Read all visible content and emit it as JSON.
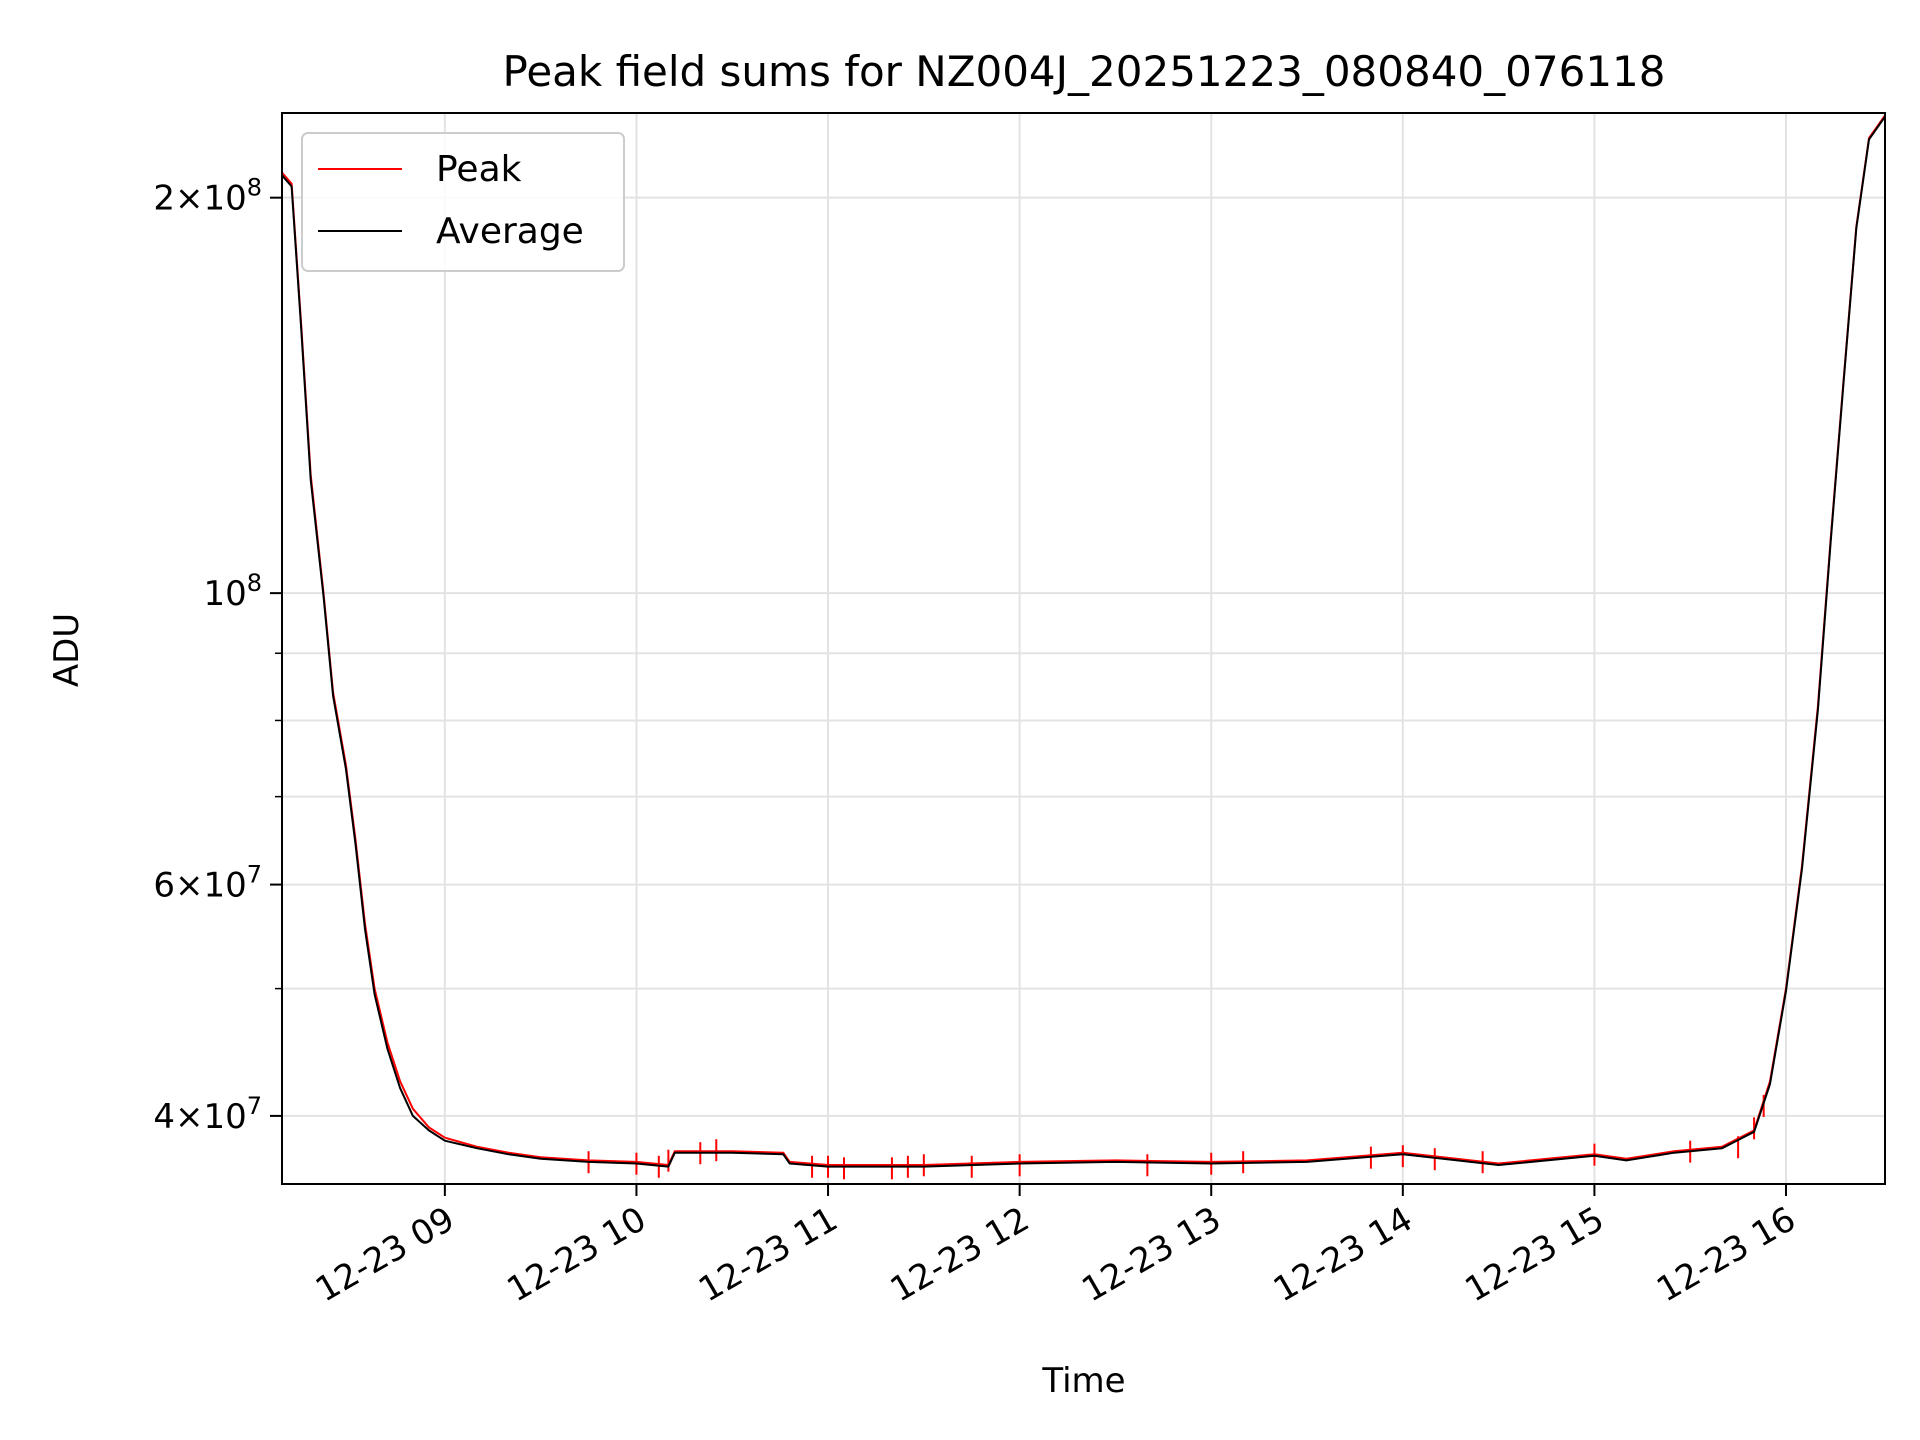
{
  "chart_data": {
    "type": "line",
    "title": "Peak field sums for NZ004J_20251223_080840_076118",
    "xlabel": "Time",
    "ylabel": "ADU",
    "y_scale": "log",
    "ylim": [
      35500000,
      232000000
    ],
    "xlim": [
      "2025-12-23 08:09",
      "2025-12-23 16:31"
    ],
    "x_ticks": [
      {
        "t": "2025-12-23 09:00",
        "label": "12-23 09"
      },
      {
        "t": "2025-12-23 10:00",
        "label": "12-23 10"
      },
      {
        "t": "2025-12-23 11:00",
        "label": "12-23 11"
      },
      {
        "t": "2025-12-23 12:00",
        "label": "12-23 12"
      },
      {
        "t": "2025-12-23 13:00",
        "label": "12-23 13"
      },
      {
        "t": "2025-12-23 14:00",
        "label": "12-23 14"
      },
      {
        "t": "2025-12-23 15:00",
        "label": "12-23 15"
      },
      {
        "t": "2025-12-23 16:00",
        "label": "12-23 16"
      }
    ],
    "y_major_ticks": [
      {
        "value": 40000000,
        "mantissa": "4",
        "exp": "7"
      },
      {
        "value": 60000000,
        "mantissa": "6",
        "exp": "7"
      },
      {
        "value": 100000000,
        "mantissa": "",
        "exp": "8"
      },
      {
        "value": 200000000,
        "mantissa": "2",
        "exp": "8"
      }
    ],
    "y_minor_ticks": [
      50000000,
      70000000,
      80000000,
      90000000
    ],
    "grid": true,
    "legend_position": "top-left",
    "series": [
      {
        "name": "Peak",
        "color": "#ff0000",
        "points": [
          [
            "2025-12-23 08:09",
            209000000
          ],
          [
            "2025-12-23 08:12",
            205000000
          ],
          [
            "2025-12-23 08:15",
            160000000
          ],
          [
            "2025-12-23 08:18",
            123000000
          ],
          [
            "2025-12-23 08:22",
            100000000
          ],
          [
            "2025-12-23 08:25",
            84000000
          ],
          [
            "2025-12-23 08:29",
            74000000
          ],
          [
            "2025-12-23 08:32",
            65000000
          ],
          [
            "2025-12-23 08:35",
            56000000
          ],
          [
            "2025-12-23 08:38",
            50000000
          ],
          [
            "2025-12-23 08:42",
            45500000
          ],
          [
            "2025-12-23 08:46",
            42500000
          ],
          [
            "2025-12-23 08:50",
            40500000
          ],
          [
            "2025-12-23 08:55",
            39200000
          ],
          [
            "2025-12-23 09:00",
            38500000
          ],
          [
            "2025-12-23 09:10",
            37900000
          ],
          [
            "2025-12-23 09:20",
            37500000
          ],
          [
            "2025-12-23 09:30",
            37200000
          ],
          [
            "2025-12-23 09:45",
            37000000
          ],
          [
            "2025-12-23 10:00",
            36900000
          ],
          [
            "2025-12-23 10:10",
            36700000
          ],
          [
            "2025-12-23 10:12",
            37600000
          ],
          [
            "2025-12-23 10:30",
            37600000
          ],
          [
            "2025-12-23 10:46",
            37500000
          ],
          [
            "2025-12-23 10:48",
            36900000
          ],
          [
            "2025-12-23 11:00",
            36700000
          ],
          [
            "2025-12-23 11:30",
            36700000
          ],
          [
            "2025-12-23 12:00",
            36900000
          ],
          [
            "2025-12-23 12:30",
            37000000
          ],
          [
            "2025-12-23 13:00",
            36900000
          ],
          [
            "2025-12-23 13:30",
            37000000
          ],
          [
            "2025-12-23 14:00",
            37500000
          ],
          [
            "2025-12-23 14:30",
            36800000
          ],
          [
            "2025-12-23 15:00",
            37400000
          ],
          [
            "2025-12-23 15:10",
            37100000
          ],
          [
            "2025-12-23 15:25",
            37600000
          ],
          [
            "2025-12-23 15:40",
            37900000
          ],
          [
            "2025-12-23 15:50",
            39000000
          ],
          [
            "2025-12-23 15:55",
            42500000
          ],
          [
            "2025-12-23 16:00",
            50000000
          ],
          [
            "2025-12-23 16:05",
            62000000
          ],
          [
            "2025-12-23 16:10",
            82000000
          ],
          [
            "2025-12-23 16:14",
            110000000
          ],
          [
            "2025-12-23 16:18",
            145000000
          ],
          [
            "2025-12-23 16:22",
            190000000
          ],
          [
            "2025-12-23 16:26",
            222000000
          ],
          [
            "2025-12-23 16:31",
            231000000
          ]
        ],
        "spikes": [
          [
            "2025-12-23 09:45",
            37600000
          ],
          [
            "2025-12-23 10:00",
            37500000
          ],
          [
            "2025-12-23 10:07",
            37300000
          ],
          [
            "2025-12-23 10:10",
            37700000
          ],
          [
            "2025-12-23 10:20",
            38200000
          ],
          [
            "2025-12-23 10:25",
            38400000
          ],
          [
            "2025-12-23 10:55",
            37300000
          ],
          [
            "2025-12-23 11:00",
            37300000
          ],
          [
            "2025-12-23 11:05",
            37200000
          ],
          [
            "2025-12-23 11:20",
            37200000
          ],
          [
            "2025-12-23 11:25",
            37300000
          ],
          [
            "2025-12-23 11:30",
            37400000
          ],
          [
            "2025-12-23 11:45",
            37300000
          ],
          [
            "2025-12-23 12:00",
            37400000
          ],
          [
            "2025-12-23 12:40",
            37400000
          ],
          [
            "2025-12-23 13:00",
            37500000
          ],
          [
            "2025-12-23 13:10",
            37600000
          ],
          [
            "2025-12-23 13:50",
            37900000
          ],
          [
            "2025-12-23 14:00",
            38000000
          ],
          [
            "2025-12-23 14:10",
            37800000
          ],
          [
            "2025-12-23 14:25",
            37600000
          ],
          [
            "2025-12-23 15:00",
            38100000
          ],
          [
            "2025-12-23 15:30",
            38300000
          ],
          [
            "2025-12-23 15:45",
            38600000
          ],
          [
            "2025-12-23 15:50",
            39900000
          ],
          [
            "2025-12-23 15:53",
            41500000
          ]
        ]
      },
      {
        "name": "Average",
        "color": "#000000",
        "points": [
          [
            "2025-12-23 08:09",
            208000000
          ],
          [
            "2025-12-23 08:12",
            204000000
          ],
          [
            "2025-12-23 08:15",
            159000000
          ],
          [
            "2025-12-23 08:18",
            122000000
          ],
          [
            "2025-12-23 08:22",
            99500000
          ],
          [
            "2025-12-23 08:25",
            83500000
          ],
          [
            "2025-12-23 08:29",
            73500000
          ],
          [
            "2025-12-23 08:32",
            64500000
          ],
          [
            "2025-12-23 08:35",
            55500000
          ],
          [
            "2025-12-23 08:38",
            49500000
          ],
          [
            "2025-12-23 08:42",
            45000000
          ],
          [
            "2025-12-23 08:46",
            42000000
          ],
          [
            "2025-12-23 08:50",
            40000000
          ],
          [
            "2025-12-23 08:55",
            39000000
          ],
          [
            "2025-12-23 09:00",
            38300000
          ],
          [
            "2025-12-23 09:10",
            37800000
          ],
          [
            "2025-12-23 09:20",
            37400000
          ],
          [
            "2025-12-23 09:30",
            37100000
          ],
          [
            "2025-12-23 09:45",
            36900000
          ],
          [
            "2025-12-23 10:00",
            36800000
          ],
          [
            "2025-12-23 10:10",
            36600000
          ],
          [
            "2025-12-23 10:12",
            37500000
          ],
          [
            "2025-12-23 10:30",
            37500000
          ],
          [
            "2025-12-23 10:46",
            37400000
          ],
          [
            "2025-12-23 10:48",
            36800000
          ],
          [
            "2025-12-23 11:00",
            36600000
          ],
          [
            "2025-12-23 11:30",
            36600000
          ],
          [
            "2025-12-23 12:00",
            36800000
          ],
          [
            "2025-12-23 12:30",
            36900000
          ],
          [
            "2025-12-23 13:00",
            36800000
          ],
          [
            "2025-12-23 13:30",
            36900000
          ],
          [
            "2025-12-23 14:00",
            37400000
          ],
          [
            "2025-12-23 14:30",
            36700000
          ],
          [
            "2025-12-23 15:00",
            37300000
          ],
          [
            "2025-12-23 15:10",
            37000000
          ],
          [
            "2025-12-23 15:25",
            37500000
          ],
          [
            "2025-12-23 15:40",
            37800000
          ],
          [
            "2025-12-23 15:50",
            38900000
          ],
          [
            "2025-12-23 15:55",
            42300000
          ],
          [
            "2025-12-23 16:00",
            49800000
          ],
          [
            "2025-12-23 16:05",
            61700000
          ],
          [
            "2025-12-23 16:10",
            81500000
          ],
          [
            "2025-12-23 16:14",
            109500000
          ],
          [
            "2025-12-23 16:18",
            144500000
          ],
          [
            "2025-12-23 16:22",
            189500000
          ],
          [
            "2025-12-23 16:26",
            221500000
          ],
          [
            "2025-12-23 16:31",
            230500000
          ]
        ]
      }
    ]
  }
}
